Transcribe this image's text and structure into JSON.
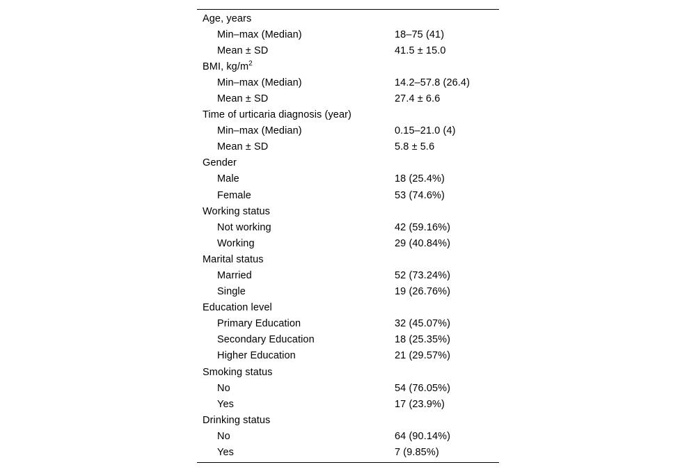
{
  "table": {
    "rows": [
      {
        "label": "Age, years",
        "value": "",
        "indent": false
      },
      {
        "label": "Min–max (Median)",
        "value": "18–75 (41)",
        "indent": true
      },
      {
        "label": "Mean ± SD",
        "value": "41.5 ± 15.0",
        "indent": true
      },
      {
        "label": "BMI, kg/m",
        "sup": "2",
        "value": "",
        "indent": false
      },
      {
        "label": "Min–max (Median)",
        "value": "14.2–57.8 (26.4)",
        "indent": true
      },
      {
        "label": "Mean ± SD",
        "value": "27.4 ± 6.6",
        "indent": true
      },
      {
        "label": "Time of urticaria diagnosis (year)",
        "value": "",
        "indent": false
      },
      {
        "label": "Min–max (Median)",
        "value": "0.15–21.0 (4)",
        "indent": true
      },
      {
        "label": "Mean ± SD",
        "value": "5.8 ± 5.6",
        "indent": true
      },
      {
        "label": "Gender",
        "value": "",
        "indent": false
      },
      {
        "label": "Male",
        "value": "18 (25.4%)",
        "indent": true
      },
      {
        "label": "Female",
        "value": "53 (74.6%)",
        "indent": true
      },
      {
        "label": "Working status",
        "value": "",
        "indent": false
      },
      {
        "label": "Not working",
        "value": "42 (59.16%)",
        "indent": true
      },
      {
        "label": "Working",
        "value": "29 (40.84%)",
        "indent": true
      },
      {
        "label": "Marital status",
        "value": "",
        "indent": false
      },
      {
        "label": "Married",
        "value": "52 (73.24%)",
        "indent": true
      },
      {
        "label": "Single",
        "value": "19 (26.76%)",
        "indent": true
      },
      {
        "label": "Education level",
        "value": "",
        "indent": false
      },
      {
        "label": "Primary Education",
        "value": "32 (45.07%)",
        "indent": true
      },
      {
        "label": "Secondary Education",
        "value": "18 (25.35%)",
        "indent": true
      },
      {
        "label": "Higher Education",
        "value": "21 (29.57%)",
        "indent": true
      },
      {
        "label": "Smoking status",
        "value": "",
        "indent": false
      },
      {
        "label": "No",
        "value": "54 (76.05%)",
        "indent": true
      },
      {
        "label": "Yes",
        "value": "17 (23.9%)",
        "indent": true
      },
      {
        "label": "Drinking status",
        "value": "",
        "indent": false
      },
      {
        "label": "No",
        "value": "64 (90.14%)",
        "indent": true
      },
      {
        "label": "Yes",
        "value": "7 (9.85%)",
        "indent": true
      }
    ]
  }
}
